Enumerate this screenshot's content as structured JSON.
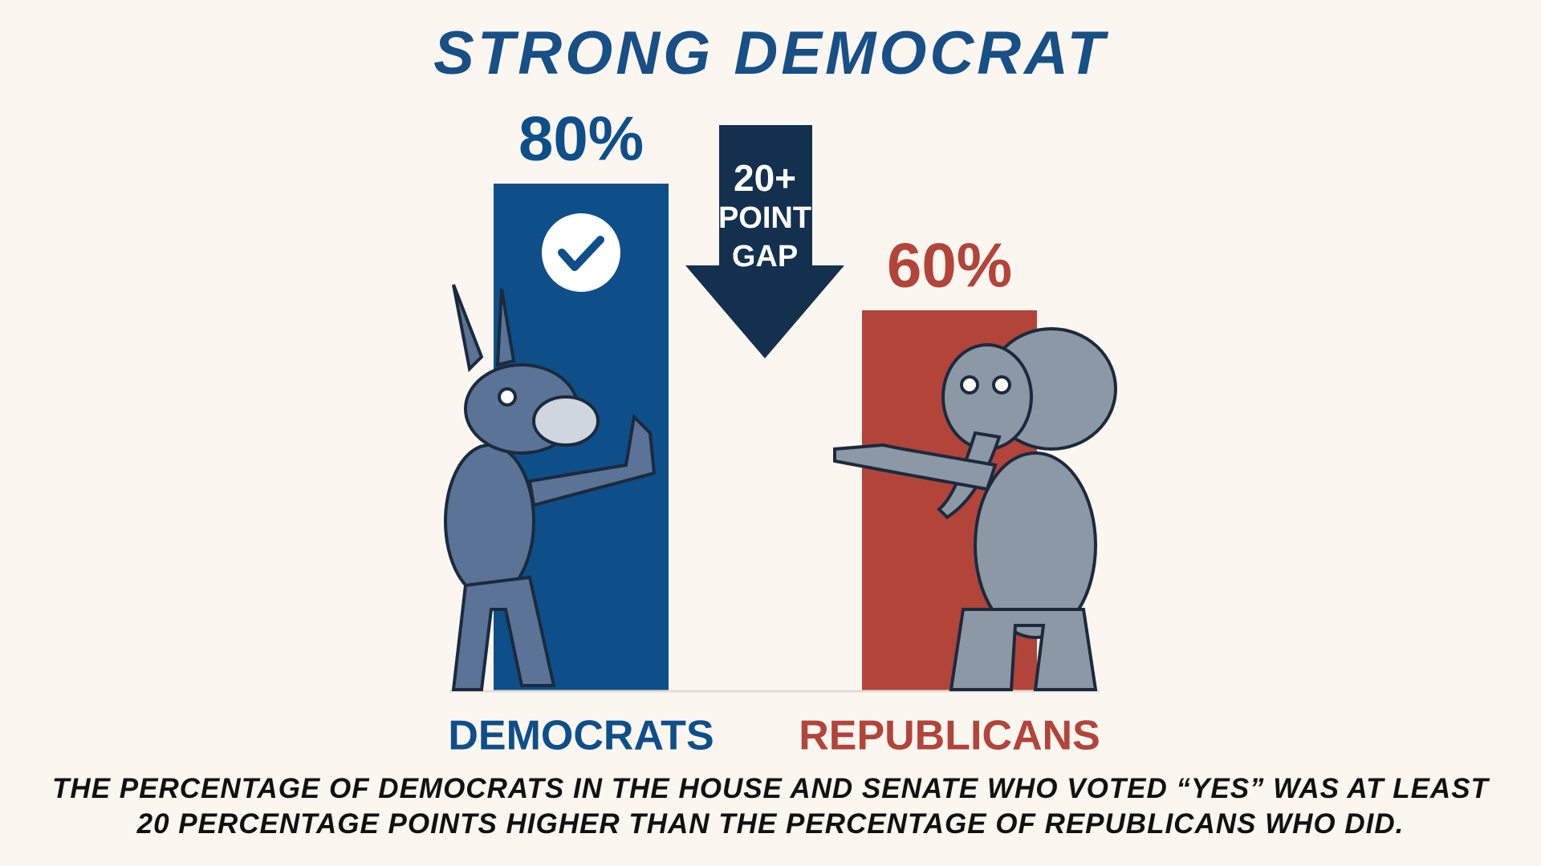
{
  "chart_data": {
    "type": "bar",
    "title": "STRONG DEMOCRAT",
    "categories": [
      "DEMOCRATS",
      "REPUBLICANS"
    ],
    "values": [
      80,
      60
    ],
    "value_labels": [
      "80%",
      "60%"
    ],
    "colors": [
      "#0e4f8a",
      "#b3443a"
    ],
    "annotation": [
      "20+",
      "POINT",
      "GAP"
    ],
    "caption": "THE PERCENTAGE OF DEMOCRATS IN THE HOUSE AND SENATE WHO VOTED “YES” WAS AT LEAST 20 PERCENTAGE POINTS HIGHER THAN THE PERCENTAGE OF REPUBLICANS WHO DID."
  }
}
